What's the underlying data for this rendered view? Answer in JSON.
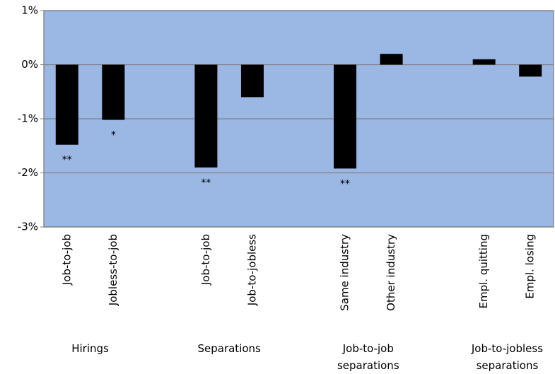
{
  "chart_data": {
    "type": "bar",
    "categories": [
      "Job-to-job",
      "Jobless-to-job",
      "Job-to-job",
      "Job-to-jobless",
      "Same industry",
      "Other industry",
      "Empl. quitting",
      "Empl. losing"
    ],
    "values": [
      -1.48,
      -1.02,
      -1.9,
      -0.6,
      -1.92,
      0.2,
      0.1,
      -0.22
    ],
    "value_labels": [
      "**",
      "*",
      "**",
      null,
      "**",
      null,
      null,
      null
    ],
    "groups": [
      "Hirings",
      "Separations",
      "Job-to-job separations",
      "Job-to-jobless separations"
    ],
    "color": "#000000",
    "ylim": [
      -3,
      1
    ],
    "yticks": [
      {
        "value": -3,
        "label": "-3%"
      },
      {
        "value": -2,
        "label": "-2%"
      },
      {
        "value": -1,
        "label": "-1%"
      },
      {
        "value": 0,
        "label": "0%"
      },
      {
        "value": 1,
        "label": "1%"
      }
    ],
    "grid": true
  }
}
